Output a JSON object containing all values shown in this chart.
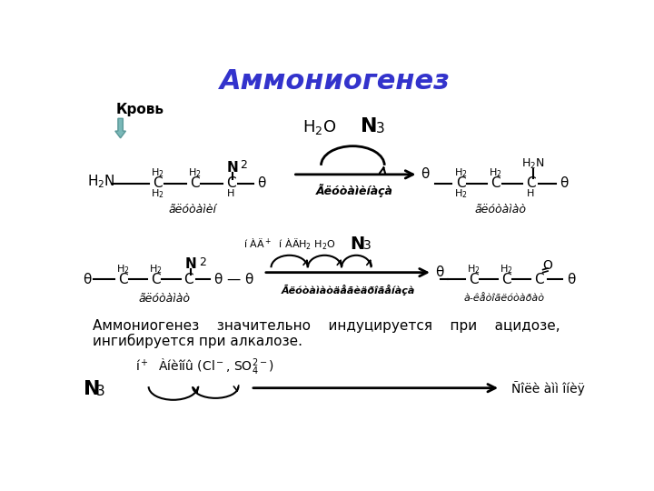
{
  "title": "Аммониогенез",
  "title_color": "#3333cc",
  "title_fontsize": 22,
  "bg_color": "#ffffff",
  "text_color": "#000000",
  "krov_label": "Кровь",
  "desc_text1": "Аммониогенез    значительно    индуцируется    при    ацидозе,",
  "desc_text2": "ингибируется при алкалозе.",
  "arrow_color": "#7aadad"
}
